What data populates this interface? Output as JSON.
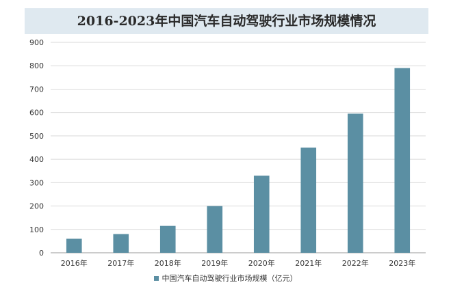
{
  "chart_data": {
    "type": "bar",
    "title": "2016-2023年中国汽车自动驾驶行业市场规模情况",
    "categories": [
      "2016年",
      "2017年",
      "2018年",
      "2019年",
      "2020年",
      "2021年",
      "2022年",
      "2023年"
    ],
    "series": [
      {
        "name": "中国汽车自动驾驶行业市场规模（亿元）",
        "values": [
          60,
          80,
          115,
          200,
          330,
          450,
          595,
          790
        ]
      }
    ],
    "ylim": [
      0,
      900
    ],
    "yticks": [
      "0",
      "100",
      "200",
      "300",
      "400",
      "500",
      "600",
      "700",
      "800",
      "900"
    ],
    "grid": true,
    "legend_position": "bottom",
    "bar_color": "#5b8fa3",
    "title_band_color": "#dfe9f0"
  }
}
